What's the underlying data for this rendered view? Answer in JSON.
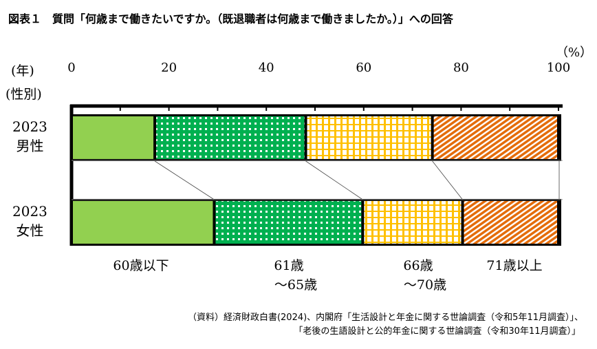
{
  "title": "図表１　質問「何歳まで働きたいですか。（既退職者は何歳まで働きましたか。）」への回答",
  "unit": "（%）",
  "year_label": "(年)",
  "sex_label": "(性別)",
  "chart_data": {
    "type": "bar",
    "orientation": "horizontal-stacked",
    "title": "質問「何歳まで働きたいですか。（既退職者は何歳まで働きましたか。）」への回答",
    "xlim": [
      0,
      100
    ],
    "xticks": [
      "0",
      "20",
      "40",
      "60",
      "80",
      "100"
    ],
    "categories": [
      {
        "year": "2023",
        "sex": "男性"
      },
      {
        "year": "2023",
        "sex": "女性"
      }
    ],
    "series": [
      {
        "name": "60歳以下",
        "label_lines": [
          "60歳以下"
        ],
        "color": "#92d050",
        "pattern": "solid",
        "values": [
          17.1,
          29.3
        ]
      },
      {
        "name": "61歳～65歳",
        "label_lines": [
          "61歳",
          "～65歳"
        ],
        "color": "#00b050",
        "pattern": "dots",
        "values": [
          31.0,
          30.5
        ]
      },
      {
        "name": "66歳～70歳",
        "label_lines": [
          "66歳",
          "～70歳"
        ],
        "color": "#ffc000",
        "pattern": "grid",
        "values": [
          26.0,
          20.5
        ]
      },
      {
        "name": "71歳以上",
        "label_lines": [
          "71歳以上"
        ],
        "color": "#e46c0a",
        "pattern": "diagonal",
        "values": [
          25.9,
          19.7
        ]
      }
    ]
  },
  "source": [
    "（資料）経済財政白書(2024)、内閣府「生活設計と年金に関する世論調査（令和5年11月調査）」、",
    "「老後の生語設計と公的年金に関する世論調査（令和30年11月調査）」"
  ]
}
